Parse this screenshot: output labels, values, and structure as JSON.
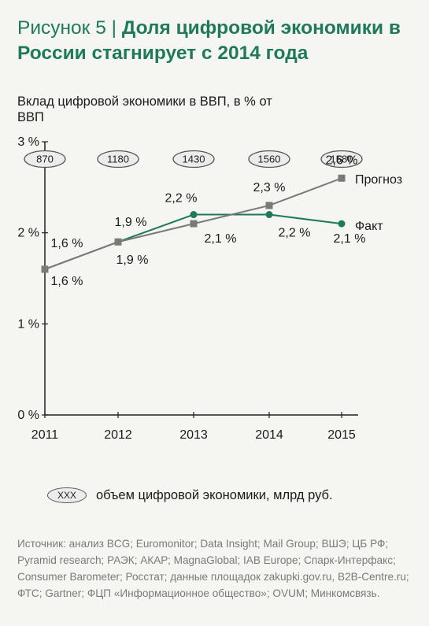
{
  "title": {
    "part1": "Рисунок 5 | ",
    "part2": "Доля цифровой экономики в России стагнирует с 2014 года"
  },
  "colors": {
    "forecast": "#7a7a7a",
    "fact": "#1f7a5c",
    "title": "#1f7a5c",
    "axis": "#222222"
  },
  "chart_data": {
    "type": "line",
    "ylabel": "Вклад цифровой экономики в ВВП, в % от ВВП",
    "x": [
      "2011",
      "2012",
      "2013",
      "2014",
      "2015"
    ],
    "ylim": [
      0,
      3
    ],
    "yticks": [
      "0 %",
      "1 %",
      "2 %",
      "3 %"
    ],
    "series": [
      {
        "name": "Прогноз",
        "values": [
          1.6,
          1.9,
          2.1,
          2.3,
          2.6
        ],
        "labels": [
          "1,6 %",
          "1,9 %",
          "2,1 %",
          "2,3 %",
          "2,6 %"
        ],
        "marker": "square"
      },
      {
        "name": "Факт",
        "values": [
          1.6,
          1.9,
          2.2,
          2.2,
          2.1
        ],
        "labels": [
          "1,6 %",
          "1,9 %",
          "2,2 %",
          "2,2 %",
          "2,1 %"
        ],
        "marker": "circle"
      }
    ],
    "volumes": [
      "870",
      "1180",
      "1430",
      "1560",
      "1580"
    ]
  },
  "legend": {
    "oval_text": "XXX",
    "text": "объем цифровой экономики, млрд руб."
  },
  "source": "Источник: анализ BCG; Euromonitor; Data Insight; Mail Group; ВШЭ; ЦБ РФ; Pyramid research; РАЭК; АКАР; MagnaGlobal; IAB Europe; Спарк-Интерфакс; Consumer Barometer; Росстат; данные площадок zakupki.gov.ru, B2B-Centre.ru; ФТС; Gartner; ФЦП «Информационное общество»; OVUM; Минкомсвязь."
}
